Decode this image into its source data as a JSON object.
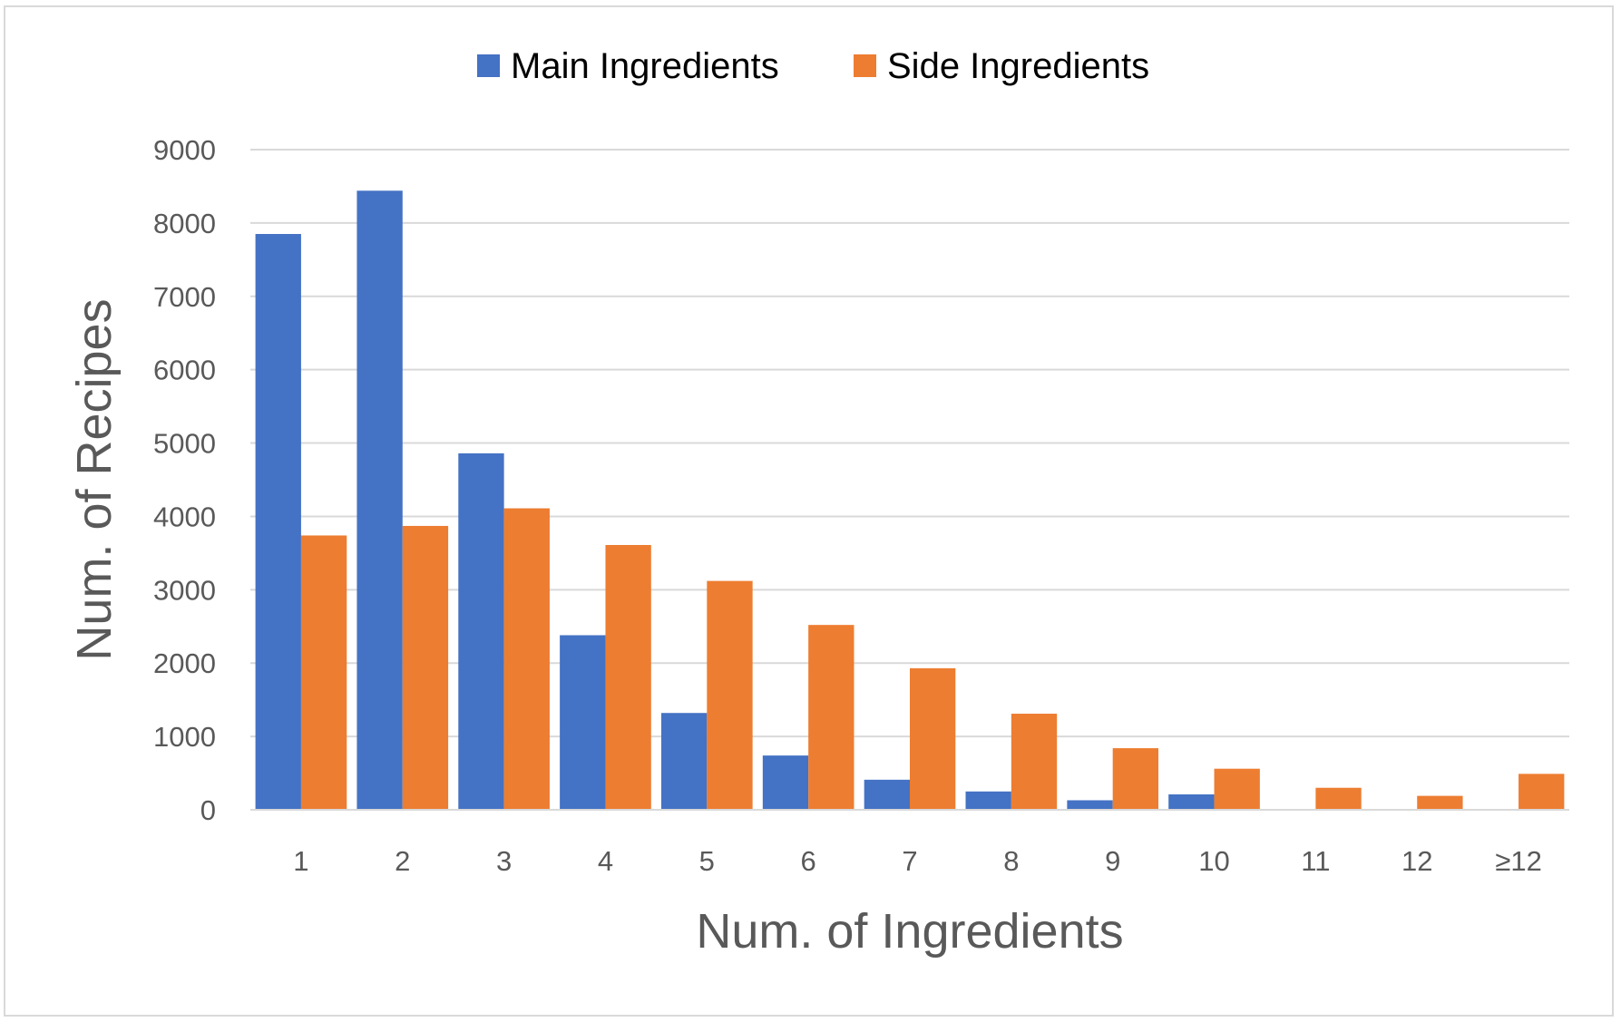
{
  "chart_data": {
    "type": "bar",
    "xlabel": "Num. of Ingredients",
    "ylabel": "Num. of Recipes",
    "categories": [
      "1",
      "2",
      "3",
      "4",
      "5",
      "6",
      "7",
      "8",
      "9",
      "10",
      "11",
      "12",
      "≥12"
    ],
    "series": [
      {
        "name": "Main Ingredients",
        "color": "#4472c4",
        "values": [
          7850,
          8440,
          4860,
          2380,
          1320,
          740,
          410,
          250,
          130,
          210,
          0,
          0,
          0
        ]
      },
      {
        "name": "Side Ingredients",
        "color": "#ed7d31",
        "values": [
          3740,
          3870,
          4110,
          3610,
          3120,
          2520,
          1930,
          1310,
          840,
          560,
          300,
          190,
          490
        ]
      }
    ],
    "ylim": [
      0,
      9000
    ],
    "yticks": [
      0,
      1000,
      2000,
      3000,
      4000,
      5000,
      6000,
      7000,
      8000,
      9000
    ],
    "grid": true,
    "gridline_color": "#d9d9d9",
    "legend_position": "top-center"
  }
}
